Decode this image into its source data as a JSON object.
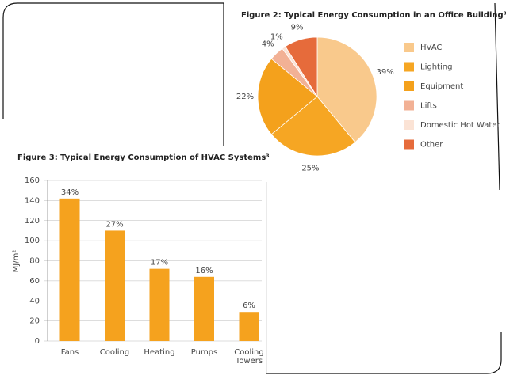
{
  "chart_data": [
    {
      "type": "pie",
      "title": "Figure 2: Typical Energy Consumption in an Office Building³",
      "categories": [
        "HVAC",
        "Lighting",
        "Equipment",
        "Lifts",
        "Domestic Hot Water",
        "Other"
      ],
      "values": [
        39,
        25,
        22,
        4,
        1,
        9
      ],
      "value_labels": [
        "39%",
        "25%",
        "22%",
        "4%",
        "1%",
        "9%"
      ],
      "colors": [
        "#f9c98c",
        "#f6a623",
        "#f4a11c",
        "#f2b195",
        "#fbe3d5",
        "#e66b3b"
      ],
      "legend": "right"
    },
    {
      "type": "bar",
      "title": "Figure 3: Typical Energy Consumption of HVAC Systems³",
      "y_label": "MJ/m²",
      "categories": [
        "Fans",
        "Cooling",
        "Heating",
        "Pumps",
        "Cooling Towers"
      ],
      "values": [
        142,
        110,
        72,
        64,
        29
      ],
      "annotations": [
        "34%",
        "27%",
        "17%",
        "16%",
        "6%"
      ],
      "color": "#f5a21e",
      "ylim": [
        0,
        160
      ],
      "yticks": [
        0,
        20,
        40,
        60,
        80,
        100,
        120,
        140,
        160
      ],
      "grid": true
    }
  ]
}
